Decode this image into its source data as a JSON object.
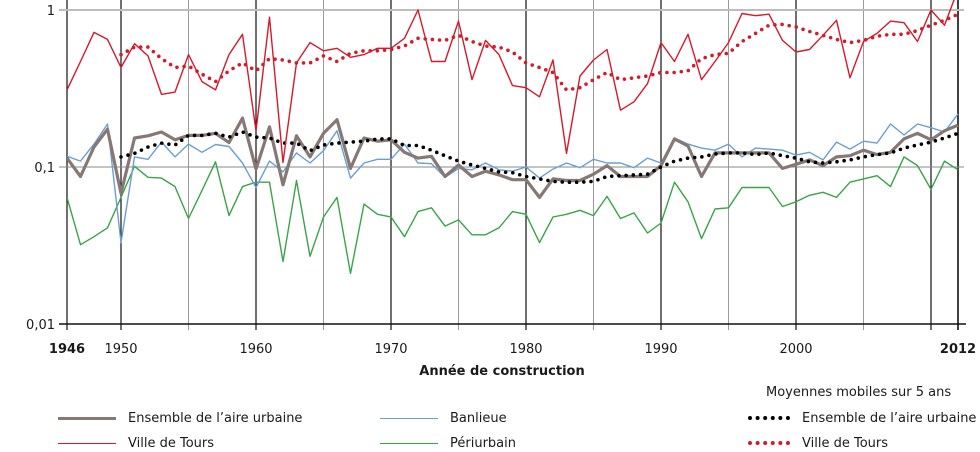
{
  "chart_data": {
    "type": "line",
    "title": "",
    "xlabel": "Année de construction",
    "ylabel": "",
    "yscale": "log",
    "ylim": [
      0.01,
      1
    ],
    "xlim": [
      1946,
      2012
    ],
    "y_ticks": [
      {
        "value": 1,
        "label": "1"
      },
      {
        "value": 0.1,
        "label": "0,1"
      },
      {
        "value": 0.01,
        "label": "0,01"
      }
    ],
    "x_ticks": [
      {
        "value": 1946,
        "label": "1946",
        "bold": true
      },
      {
        "value": 1950,
        "label": "1950",
        "bold": false
      },
      {
        "value": 1960,
        "label": "1960",
        "bold": false
      },
      {
        "value": 1970,
        "label": "1970",
        "bold": false
      },
      {
        "value": 1980,
        "label": "1980",
        "bold": false
      },
      {
        "value": 1990,
        "label": "1990",
        "bold": false
      },
      {
        "value": 2000,
        "label": "2000",
        "bold": false
      },
      {
        "value": 2012,
        "label": "2012",
        "bold": true
      }
    ],
    "grid": true,
    "legend_position": "bottom",
    "legend_group_title": "Moyennes mobiles sur 5 ans",
    "x": [
      1946,
      1947,
      1948,
      1949,
      1950,
      1951,
      1952,
      1953,
      1954,
      1955,
      1956,
      1957,
      1958,
      1959,
      1960,
      1961,
      1962,
      1963,
      1964,
      1965,
      1966,
      1967,
      1968,
      1969,
      1970,
      1971,
      1972,
      1973,
      1974,
      1975,
      1976,
      1977,
      1978,
      1979,
      1980,
      1981,
      1982,
      1983,
      1984,
      1985,
      1986,
      1987,
      1988,
      1989,
      1990,
      1991,
      1992,
      1993,
      1994,
      1995,
      1996,
      1997,
      1998,
      1999,
      2000,
      2001,
      2002,
      2003,
      2004,
      2005,
      2006,
      2007,
      2008,
      2009,
      2010,
      2011,
      2012
    ],
    "series": [
      {
        "name": "Ensemble de l’aire urbaine",
        "style": "solid-thick",
        "color": "#857875",
        "values": [
          0.114,
          0.087,
          0.134,
          0.174,
          0.068,
          0.153,
          0.158,
          0.167,
          0.149,
          0.159,
          0.159,
          0.164,
          0.143,
          0.205,
          0.097,
          0.18,
          0.077,
          0.158,
          0.116,
          0.164,
          0.2,
          0.098,
          0.153,
          0.146,
          0.149,
          0.124,
          0.114,
          0.117,
          0.087,
          0.103,
          0.087,
          0.094,
          0.089,
          0.083,
          0.083,
          0.064,
          0.084,
          0.082,
          0.082,
          0.09,
          0.102,
          0.087,
          0.087,
          0.087,
          0.102,
          0.151,
          0.136,
          0.087,
          0.123,
          0.123,
          0.123,
          0.123,
          0.123,
          0.098,
          0.104,
          0.111,
          0.102,
          0.116,
          0.118,
          0.128,
          0.12,
          0.124,
          0.151,
          0.164,
          0.149,
          0.17,
          0.185
        ]
      },
      {
        "name": "Ville de Tours",
        "style": "solid-thin",
        "color": "#d7192a",
        "values": [
          0.31,
          0.47,
          0.72,
          0.65,
          0.43,
          0.61,
          0.51,
          0.29,
          0.3,
          0.52,
          0.35,
          0.31,
          0.52,
          0.7,
          0.17,
          0.9,
          0.107,
          0.46,
          0.62,
          0.55,
          0.57,
          0.5,
          0.52,
          0.57,
          0.57,
          0.66,
          1.0,
          0.47,
          0.47,
          0.85,
          0.36,
          0.64,
          0.52,
          0.33,
          0.32,
          0.28,
          0.48,
          0.122,
          0.38,
          0.48,
          0.56,
          0.23,
          0.26,
          0.34,
          0.62,
          0.47,
          0.7,
          0.36,
          0.47,
          0.62,
          0.95,
          0.92,
          0.94,
          0.64,
          0.54,
          0.56,
          0.69,
          0.86,
          0.37,
          0.63,
          0.71,
          0.85,
          0.83,
          0.63,
          1.0,
          0.8,
          1.35
        ]
      },
      {
        "name": "Banlieue",
        "style": "solid-thin",
        "color": "#6a9fd3",
        "values": [
          0.117,
          0.109,
          0.14,
          0.188,
          0.033,
          0.116,
          0.112,
          0.144,
          0.116,
          0.14,
          0.124,
          0.139,
          0.135,
          0.106,
          0.074,
          0.109,
          0.093,
          0.123,
          0.106,
          0.127,
          0.17,
          0.085,
          0.106,
          0.112,
          0.112,
          0.14,
          0.106,
          0.105,
          0.086,
          0.098,
          0.096,
          0.106,
          0.096,
          0.094,
          0.1,
          0.085,
          0.097,
          0.106,
          0.099,
          0.112,
          0.106,
          0.106,
          0.099,
          0.114,
          0.106,
          0.153,
          0.14,
          0.132,
          0.128,
          0.14,
          0.116,
          0.132,
          0.13,
          0.128,
          0.119,
          0.124,
          0.111,
          0.144,
          0.13,
          0.146,
          0.142,
          0.188,
          0.16,
          0.188,
          0.178,
          0.167,
          0.218
        ]
      },
      {
        "name": "Périurbain",
        "style": "solid-thin",
        "color": "#39a448",
        "values": [
          0.064,
          0.032,
          0.036,
          0.041,
          0.064,
          0.101,
          0.086,
          0.085,
          0.075,
          0.047,
          0.071,
          0.108,
          0.049,
          0.075,
          0.08,
          0.08,
          0.025,
          0.082,
          0.027,
          0.048,
          0.064,
          0.021,
          0.058,
          0.05,
          0.048,
          0.036,
          0.052,
          0.055,
          0.042,
          0.046,
          0.037,
          0.037,
          0.041,
          0.052,
          0.05,
          0.033,
          0.048,
          0.05,
          0.053,
          0.049,
          0.065,
          0.047,
          0.051,
          0.038,
          0.044,
          0.08,
          0.06,
          0.035,
          0.054,
          0.055,
          0.074,
          0.074,
          0.074,
          0.056,
          0.06,
          0.066,
          0.069,
          0.064,
          0.08,
          0.084,
          0.088,
          0.075,
          0.116,
          0.102,
          0.072,
          0.109,
          0.096
        ]
      },
      {
        "name": "Ensemble de l’aire urbaine",
        "group": "Moyennes mobiles sur 5 ans",
        "style": "dotted",
        "color": "#000000",
        "values": [
          null,
          null,
          null,
          null,
          0.116,
          0.122,
          0.134,
          0.142,
          0.138,
          0.159,
          0.159,
          0.164,
          0.155,
          0.167,
          0.155,
          0.153,
          0.142,
          0.142,
          0.127,
          0.138,
          0.142,
          0.144,
          0.146,
          0.151,
          0.151,
          0.137,
          0.137,
          0.128,
          0.118,
          0.109,
          0.103,
          0.098,
          0.093,
          0.092,
          0.087,
          0.084,
          0.081,
          0.08,
          0.08,
          0.081,
          0.087,
          0.088,
          0.089,
          0.09,
          0.1,
          0.109,
          0.114,
          0.116,
          0.121,
          0.123,
          0.123,
          0.12,
          0.123,
          0.118,
          0.114,
          0.108,
          0.106,
          0.108,
          0.111,
          0.116,
          0.12,
          0.123,
          0.132,
          0.138,
          0.144,
          0.153,
          0.164
        ]
      },
      {
        "name": "Ville de Tours",
        "group": "Moyennes mobiles sur 5 ans",
        "style": "dotted",
        "color": "#d7192a",
        "values": [
          null,
          null,
          null,
          null,
          0.52,
          0.58,
          0.58,
          0.49,
          0.43,
          0.44,
          0.39,
          0.35,
          0.41,
          0.46,
          0.41,
          0.49,
          0.48,
          0.46,
          0.46,
          0.51,
          0.47,
          0.53,
          0.55,
          0.55,
          0.56,
          0.59,
          0.66,
          0.65,
          0.64,
          0.69,
          0.63,
          0.59,
          0.58,
          0.54,
          0.46,
          0.43,
          0.4,
          0.31,
          0.32,
          0.36,
          0.4,
          0.36,
          0.37,
          0.38,
          0.4,
          0.4,
          0.41,
          0.49,
          0.52,
          0.53,
          0.63,
          0.71,
          0.8,
          0.81,
          0.78,
          0.73,
          0.69,
          0.65,
          0.62,
          0.64,
          0.68,
          0.7,
          0.7,
          0.74,
          0.8,
          0.86,
          0.94
        ]
      }
    ]
  },
  "legend": {
    "left": [
      {
        "label": "Ensemble de l’aire urbaine",
        "style": "solid-thick",
        "color": "#857875"
      },
      {
        "label": "Ville de Tours",
        "style": "solid-thin",
        "color": "#d7192a"
      }
    ],
    "middle": [
      {
        "label": "Banlieue",
        "style": "solid-thin",
        "color": "#6a9fd3"
      },
      {
        "label": "Périurbain",
        "style": "solid-thin",
        "color": "#39a448"
      }
    ],
    "right_title": "Moyennes mobiles sur 5 ans",
    "right": [
      {
        "label": "Ensemble de l’aire urbaine",
        "style": "dotted",
        "color": "#000000"
      },
      {
        "label": "Ville de Tours",
        "style": "dotted",
        "color": "#d7192a"
      }
    ]
  }
}
